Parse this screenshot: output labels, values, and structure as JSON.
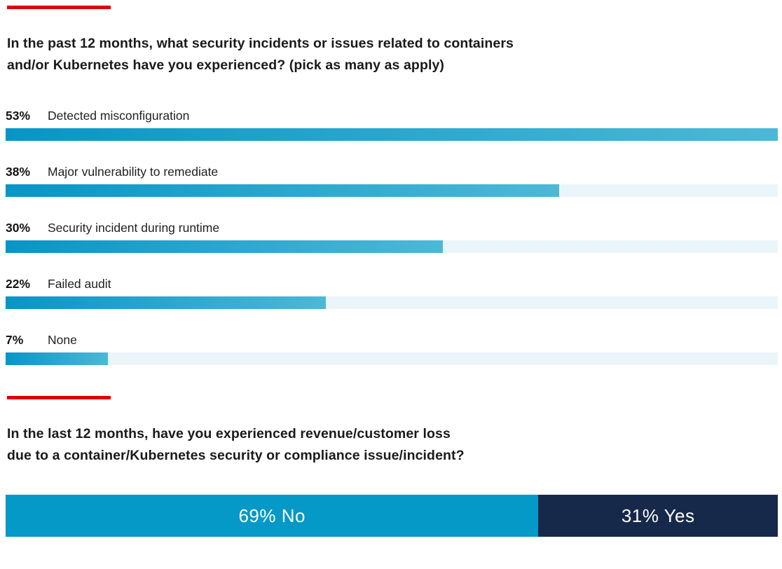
{
  "colors": {
    "accent_red": "#e00000",
    "bar_gradient_start": "#0895c5",
    "bar_gradient_end": "#4db8d6",
    "bar_track": "#eaf5f9",
    "segment_no_teal": "#0499c6",
    "segment_yes_navy": "#17294a",
    "text": "#151515"
  },
  "section1": {
    "title_line1": "In the past 12 months, what security incidents or issues related to containers",
    "title_line2": "and/or Kubernetes have you experienced? (pick as many as apply)"
  },
  "section2": {
    "title_line1": "In the last 12 months, have you experienced revenue/customer loss",
    "title_line2": "due to a container/Kubernetes security or compliance issue/incident?"
  },
  "chart_data": [
    {
      "type": "bar",
      "orientation": "horizontal",
      "title": "In the past 12 months, what security incidents or issues related to containers and/or Kubernetes have you experienced? (pick as many as apply)",
      "categories": [
        "Detected misconfiguration",
        "Major vulnerability to remediate",
        "Security incident during runtime",
        "Failed audit",
        "None"
      ],
      "values": [
        53,
        38,
        30,
        22,
        7
      ],
      "value_labels": [
        "53%",
        "38%",
        "30%",
        "22%",
        "7%"
      ],
      "unit": "%",
      "scale_max": 53,
      "grid": false,
      "legend": false
    },
    {
      "type": "bar",
      "subtype": "single-stacked",
      "title": "In the last 12 months, have you experienced revenue/customer loss due to a container/Kubernetes security or compliance issue/incident?",
      "segments": [
        {
          "name": "No",
          "value": 69,
          "label": "69% No"
        },
        {
          "name": "Yes",
          "value": 31,
          "label": "31% Yes"
        }
      ],
      "unit": "%",
      "grid": false,
      "legend": false
    }
  ]
}
